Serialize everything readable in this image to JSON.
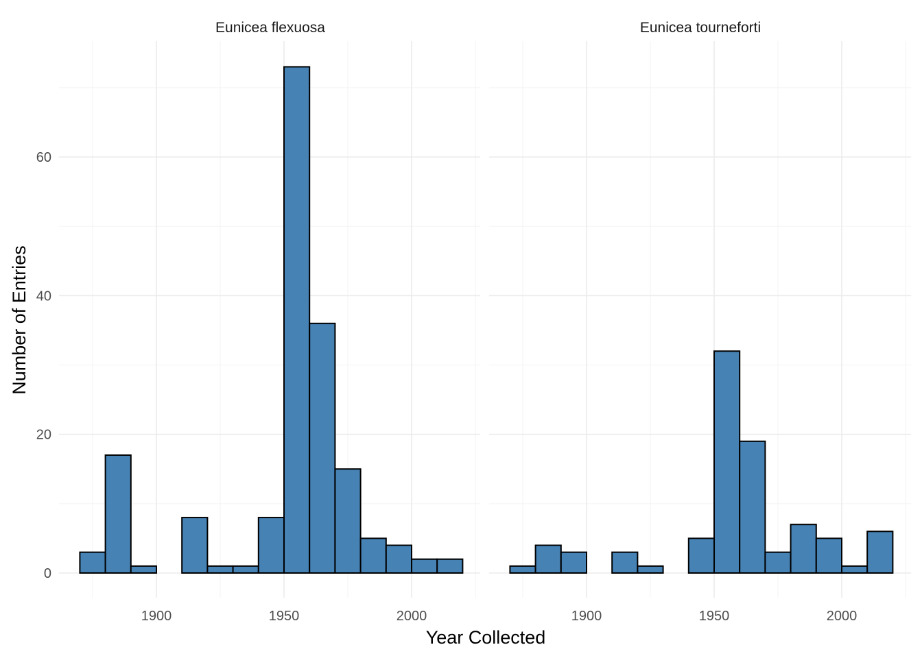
{
  "chart_data": {
    "type": "bar",
    "subtype": "histogram-faceted",
    "bar_color": "#4682b4",
    "bar_outline": "#000000",
    "xlabel": "Year Collected",
    "ylabel": "Number of Entries",
    "xlim": [
      1866,
      2024
    ],
    "ylim": [
      -4,
      76
    ],
    "x_ticks": [
      "1900",
      "1950",
      "2000"
    ],
    "x_tick_values": [
      1900,
      1950,
      2000
    ],
    "y_ticks": [
      "0",
      "20",
      "40",
      "60"
    ],
    "y_tick_values": [
      0,
      20,
      40,
      60
    ],
    "x_minor": [
      1875,
      1925,
      1975,
      2025
    ],
    "y_minor": [
      10,
      30,
      50,
      70
    ],
    "grid": true,
    "bin_width": 10,
    "facets": [
      {
        "title": "Eunicea flexuosa",
        "bin_starts": [
          1870,
          1880,
          1890,
          1900,
          1910,
          1920,
          1930,
          1940,
          1950,
          1960,
          1970,
          1980,
          1990,
          2000,
          2010
        ],
        "counts": [
          3,
          17,
          1,
          0,
          8,
          1,
          1,
          8,
          73,
          36,
          15,
          5,
          4,
          2,
          2
        ]
      },
      {
        "title": "Eunicea tourneforti",
        "bin_starts": [
          1870,
          1880,
          1890,
          1900,
          1910,
          1920,
          1930,
          1940,
          1950,
          1960,
          1970,
          1980,
          1990,
          2000,
          2010
        ],
        "counts": [
          1,
          4,
          3,
          0,
          3,
          1,
          0,
          5,
          32,
          19,
          3,
          7,
          5,
          1,
          6
        ]
      }
    ]
  }
}
